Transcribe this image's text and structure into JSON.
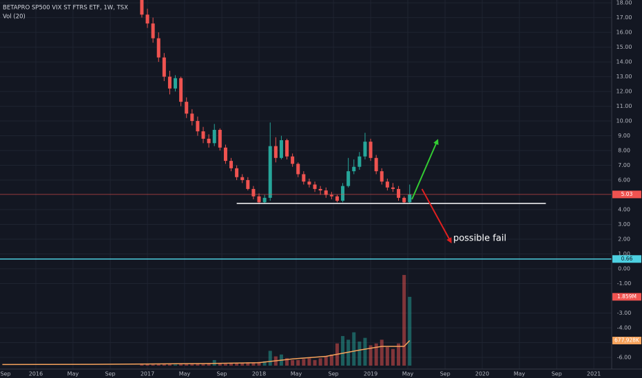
{
  "chart_data": {
    "type": "candlestick",
    "title": "BETAPRO SP500 VIX ST FTRS ETF, 1W, TSX",
    "indicator": "Vol (20)",
    "background": "#131722",
    "grid_color": "#1f2431",
    "up_color": "#26a69a",
    "down_color": "#ef5350",
    "xlim": [
      2015.679,
      2021.16
    ],
    "xticks": [
      {
        "value": 2015.667,
        "label": "Sep"
      },
      2016,
      {
        "value": 2016.333,
        "label": "May"
      },
      {
        "value": 2016.667,
        "label": "Sep"
      },
      2017,
      {
        "value": 2017.333,
        "label": "May"
      },
      {
        "value": 2017.667,
        "label": "Sep"
      },
      2018,
      {
        "value": 2018.333,
        "label": "May"
      },
      {
        "value": 2018.667,
        "label": "Sep"
      },
      2019,
      {
        "value": 2019.333,
        "label": "May"
      },
      {
        "value": 2019.667,
        "label": "Sep"
      },
      2020,
      {
        "value": 2020.333,
        "label": "May"
      },
      {
        "value": 2020.667,
        "label": "Sep"
      },
      2021
    ],
    "ylim": [
      -6.79,
      18.19
    ],
    "yticks": [
      {
        "value": 18,
        "label": "18.00"
      },
      {
        "value": 17,
        "label": "17.00"
      },
      {
        "value": 16,
        "label": "16.00"
      },
      {
        "value": 15,
        "label": "15.00"
      },
      {
        "value": 14,
        "label": "14.00"
      },
      {
        "value": 13,
        "label": "13.00"
      },
      {
        "value": 12,
        "label": "12.00"
      },
      {
        "value": 11,
        "label": "11.00"
      },
      {
        "value": 10,
        "label": "10.00"
      },
      {
        "value": 9,
        "label": "9.00"
      },
      {
        "value": 8,
        "label": "8.00"
      },
      {
        "value": 7,
        "label": "7.00"
      },
      {
        "value": 6,
        "label": "6.00"
      },
      {
        "value": 4,
        "label": "4.00"
      },
      {
        "value": 3,
        "label": "3.00"
      },
      {
        "value": 2,
        "label": "2.00"
      },
      {
        "value": 1,
        "label": "1.00"
      },
      {
        "value": 0,
        "label": "0.00"
      },
      {
        "value": -1,
        "label": "-1.00"
      },
      {
        "value": -3,
        "label": "-3.00"
      },
      {
        "value": -4,
        "label": "-4.00"
      },
      {
        "value": -5,
        "label": "-5.00"
      },
      {
        "value": -6,
        "label": "-6.00"
      }
    ],
    "x": [
      2016.95,
      2017.0,
      2017.05,
      2017.1,
      2017.15,
      2017.2,
      2017.25,
      2017.3,
      2017.35,
      2017.4,
      2017.45,
      2017.5,
      2017.55,
      2017.6,
      2017.65,
      2017.7,
      2017.75,
      2017.8,
      2017.85,
      2017.9,
      2017.95,
      2018.0,
      2018.05,
      2018.1,
      2018.15,
      2018.2,
      2018.25,
      2018.3,
      2018.35,
      2018.4,
      2018.45,
      2018.5,
      2018.55,
      2018.6,
      2018.65,
      2018.7,
      2018.75,
      2018.8,
      2018.85,
      2018.9,
      2018.95,
      2019.0,
      2019.05,
      2019.1,
      2019.15,
      2019.2,
      2019.25,
      2019.3,
      2019.35
    ],
    "open": [
      18.3,
      17.2,
      16.6,
      15.6,
      14.3,
      13.0,
      12.2,
      12.9,
      11.3,
      10.5,
      10.0,
      9.3,
      8.8,
      8.5,
      9.4,
      8.2,
      7.3,
      6.8,
      6.2,
      6.0,
      5.4,
      4.9,
      4.5,
      4.8,
      8.3,
      7.5,
      8.7,
      7.6,
      7.1,
      6.4,
      5.9,
      5.7,
      5.4,
      5.3,
      5.0,
      4.9,
      4.6,
      5.6,
      6.6,
      6.9,
      7.6,
      8.6,
      7.5,
      6.6,
      5.9,
      5.5,
      5.4,
      4.8,
      4.5
    ],
    "high": [
      18.6,
      17.6,
      17.0,
      16.0,
      14.6,
      13.4,
      13.1,
      13.0,
      11.6,
      10.8,
      10.3,
      9.6,
      9.1,
      9.8,
      9.5,
      8.4,
      7.5,
      7.0,
      6.4,
      6.2,
      5.6,
      5.1,
      5.0,
      9.9,
      8.9,
      9.0,
      8.8,
      7.8,
      7.2,
      6.6,
      6.1,
      5.9,
      5.6,
      5.5,
      5.2,
      5.0,
      5.8,
      7.5,
      7.4,
      7.9,
      9.2,
      8.8,
      7.7,
      6.8,
      6.1,
      5.8,
      5.6,
      4.9,
      5.7
    ],
    "low": [
      17.0,
      16.3,
      15.3,
      14.0,
      12.7,
      11.8,
      12.0,
      11.0,
      10.2,
      9.7,
      9.0,
      8.5,
      8.2,
      8.3,
      8.0,
      7.1,
      6.6,
      6.0,
      5.8,
      5.3,
      4.7,
      4.4,
      4.4,
      4.6,
      7.2,
      7.4,
      7.4,
      6.9,
      6.2,
      5.7,
      5.5,
      5.2,
      5.0,
      4.8,
      4.7,
      4.5,
      4.5,
      5.5,
      6.4,
      6.7,
      7.4,
      7.3,
      6.4,
      5.7,
      5.3,
      5.2,
      4.6,
      4.4,
      4.4
    ],
    "close": [
      17.2,
      16.6,
      15.6,
      14.3,
      13.0,
      12.2,
      12.9,
      11.3,
      10.5,
      10.0,
      9.3,
      8.8,
      8.5,
      9.4,
      8.2,
      7.3,
      6.8,
      6.2,
      6.0,
      5.4,
      4.9,
      4.5,
      4.8,
      8.3,
      7.5,
      8.7,
      7.6,
      7.1,
      6.4,
      5.9,
      5.7,
      5.4,
      5.3,
      5.0,
      4.9,
      4.6,
      5.6,
      6.6,
      6.9,
      7.6,
      8.6,
      7.5,
      6.6,
      5.9,
      5.5,
      5.4,
      4.8,
      4.5,
      5.03
    ],
    "last_price": {
      "value": 5.03,
      "label": "5.03",
      "color": "#ef5350"
    },
    "level_line": {
      "value": 0.66,
      "label": "0.66",
      "color": "#4dd0e1"
    },
    "volume_ylim": [
      0,
      2600000
    ],
    "volume": [
      30000,
      40000,
      30000,
      50000,
      40000,
      40000,
      30000,
      50000,
      40000,
      60000,
      50000,
      40000,
      60000,
      150000,
      60000,
      50000,
      80000,
      60000,
      70000,
      90000,
      80000,
      100000,
      120000,
      400000,
      250000,
      300000,
      200000,
      150000,
      150000,
      180000,
      200000,
      150000,
      200000,
      250000,
      300000,
      600000,
      800000,
      700000,
      900000,
      650000,
      750000,
      550000,
      600000,
      700000,
      500000,
      450000,
      600000,
      2450000,
      1859000
    ],
    "volume_last_label": "1.859M",
    "volume_ma": {
      "color": "#f7a35c",
      "label": "677,928K",
      "x": [
        2015.7,
        2016.5,
        2017.0,
        2017.5,
        2018.0,
        2018.3,
        2018.6,
        2018.9,
        2019.1,
        2019.3,
        2019.35
      ],
      "values": [
        30000,
        35000,
        45000,
        55000,
        80000,
        180000,
        250000,
        420000,
        520000,
        520000,
        677928
      ]
    },
    "drawings": {
      "support": {
        "x": [
          2017.8,
          2020.57
        ],
        "y": [
          4.42,
          4.42
        ],
        "color": "#ffffff"
      },
      "up_arrow": {
        "x": [
          2019.37,
          2019.6
        ],
        "y": [
          4.7,
          8.7
        ],
        "color": "#33cc33"
      },
      "down_arrow": {
        "x": [
          2019.46,
          2019.72
        ],
        "y": [
          5.4,
          1.8
        ],
        "color": "#e02020"
      },
      "note": {
        "text": "possible fail",
        "x": 2019.74,
        "y": 2.05
      }
    }
  }
}
